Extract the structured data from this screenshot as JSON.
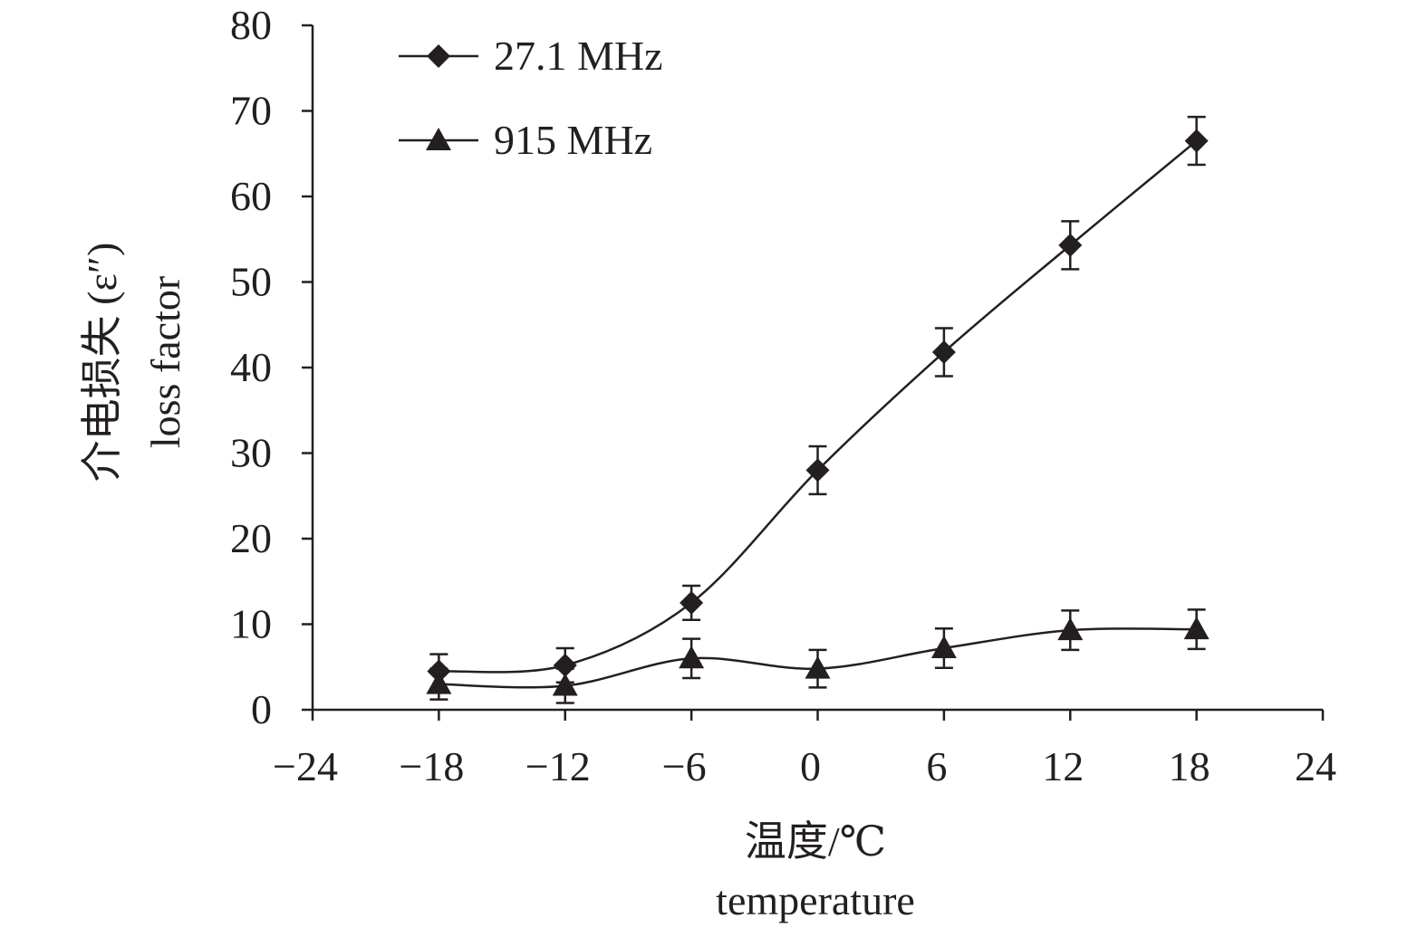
{
  "chart_data": {
    "type": "line",
    "x": [
      -18,
      -12,
      -6,
      0,
      6,
      12,
      18
    ],
    "series": [
      {
        "name": "27.1 MHz",
        "marker": "diamond",
        "values": [
          4.5,
          5.2,
          12.5,
          28.0,
          41.8,
          54.3,
          66.5
        ],
        "error": [
          2.0,
          2.0,
          2.0,
          2.8,
          2.8,
          2.8,
          2.8
        ]
      },
      {
        "name": "915 MHz",
        "marker": "triangle",
        "values": [
          3.0,
          2.8,
          6.0,
          4.8,
          7.2,
          9.3,
          9.4
        ],
        "error": [
          1.8,
          2.0,
          2.3,
          2.2,
          2.3,
          2.3,
          2.3
        ]
      }
    ],
    "xlim": [
      -24,
      24
    ],
    "ylim": [
      0,
      80
    ],
    "xticks": [
      -24,
      -18,
      -12,
      -6,
      0,
      6,
      12,
      18,
      24
    ],
    "xtick_labels": [
      "−24",
      "−18",
      "−12",
      "−6",
      "0",
      "6",
      "12",
      "18",
      "24"
    ],
    "yticks": [
      0,
      10,
      20,
      30,
      40,
      50,
      60,
      70,
      80
    ],
    "ytick_labels": [
      "0",
      "10",
      "20",
      "30",
      "40",
      "50",
      "60",
      "70",
      "80"
    ],
    "xlabel": [
      "温度/℃",
      "temperature"
    ],
    "ylabel": [
      "介电损失 (ε″)",
      "loss factor"
    ],
    "grid": false,
    "legend_position": "top-left",
    "color": "#231f20"
  }
}
